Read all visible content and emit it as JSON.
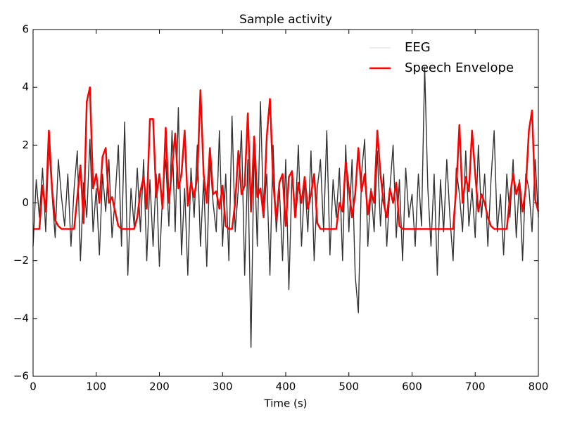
{
  "chart_data": {
    "type": "line",
    "title": "Sample activity",
    "x_label": "Time (s)",
    "x": [
      0,
      5,
      10,
      15,
      20,
      25,
      30,
      35,
      40,
      45,
      50,
      55,
      60,
      65,
      70,
      75,
      80,
      85,
      90,
      95,
      100,
      105,
      110,
      115,
      120,
      125,
      130,
      135,
      140,
      145,
      150,
      155,
      160,
      165,
      170,
      175,
      180,
      185,
      190,
      195,
      200,
      205,
      210,
      215,
      220,
      225,
      230,
      235,
      240,
      245,
      250,
      255,
      260,
      265,
      270,
      275,
      280,
      285,
      290,
      295,
      300,
      305,
      310,
      315,
      320,
      325,
      330,
      335,
      340,
      345,
      350,
      355,
      360,
      365,
      370,
      375,
      380,
      385,
      390,
      395,
      400,
      405,
      410,
      415,
      420,
      425,
      430,
      435,
      440,
      445,
      450,
      455,
      460,
      465,
      470,
      475,
      480,
      485,
      490,
      495,
      500,
      505,
      510,
      515,
      520,
      525,
      530,
      535,
      540,
      545,
      550,
      555,
      560,
      565,
      570,
      575,
      580,
      585,
      590,
      595,
      600,
      605,
      610,
      615,
      620,
      625,
      630,
      635,
      640,
      645,
      650,
      655,
      660,
      665,
      670,
      675,
      680,
      685,
      690,
      695,
      700,
      705,
      710,
      715,
      720,
      725,
      730,
      735,
      740,
      745,
      750,
      755,
      760,
      765,
      770,
      775,
      780,
      785,
      790,
      795,
      800
    ],
    "series": [
      {
        "name": "EEG",
        "color": "#000000",
        "values": [
          -1.5,
          0.8,
          -0.5,
          1.2,
          -1.0,
          2.0,
          0.3,
          -1.2,
          1.5,
          0.2,
          -0.8,
          1.0,
          -1.5,
          0.5,
          1.8,
          -2.0,
          0.7,
          -0.5,
          2.2,
          -1.0,
          0.5,
          -1.8,
          1.0,
          -0.3,
          1.5,
          -1.2,
          0.2,
          2.0,
          -1.5,
          2.8,
          -2.5,
          0.5,
          -0.8,
          1.2,
          -1.0,
          1.5,
          -2.0,
          0.8,
          -1.5,
          1.0,
          -2.2,
          0.3,
          1.5,
          -0.8,
          2.5,
          -1.0,
          3.3,
          -1.8,
          0.5,
          -2.5,
          1.2,
          -0.5,
          2.0,
          -1.5,
          0.8,
          -2.2,
          1.5,
          0.0,
          -1.0,
          2.5,
          -1.5,
          1.0,
          -2.0,
          3.0,
          -1.0,
          0.5,
          2.5,
          -2.5,
          1.5,
          -5.0,
          2.0,
          -1.5,
          3.5,
          -0.5,
          1.0,
          -2.5,
          2.0,
          -1.0,
          0.5,
          -2.0,
          1.5,
          -3.0,
          1.0,
          -0.5,
          2.0,
          -1.5,
          0.8,
          -1.0,
          1.8,
          -2.0,
          0.5,
          1.5,
          -1.0,
          2.5,
          -1.8,
          0.8,
          -0.5,
          1.2,
          -2.0,
          2.0,
          -1.0,
          1.5,
          -2.5,
          -3.8,
          1.0,
          2.2,
          -1.5,
          0.5,
          -1.0,
          1.8,
          -0.8,
          1.0,
          -1.5,
          0.5,
          2.0,
          -1.2,
          0.8,
          -2.0,
          1.2,
          -0.5,
          0.3,
          -1.5,
          1.0,
          -0.8,
          4.7,
          0.5,
          -1.5,
          1.0,
          -2.5,
          0.8,
          -1.0,
          1.5,
          -0.5,
          -2.0,
          1.2,
          0.3,
          -1.0,
          1.8,
          -0.8,
          0.5,
          -1.2,
          2.0,
          -0.5,
          1.0,
          -1.5,
          0.8,
          2.5,
          -1.0,
          0.3,
          -1.8,
          1.0,
          -0.5,
          1.5,
          -1.2,
          0.8,
          -2.0,
          1.0,
          0.5,
          -1.0,
          1.5,
          -0.5
        ]
      },
      {
        "name": "Speech Envelope",
        "color": "#ff0000",
        "values": [
          -0.9,
          -0.9,
          -0.9,
          0.6,
          -0.3,
          2.5,
          0.5,
          -0.6,
          -0.8,
          -0.9,
          -0.9,
          -0.9,
          -0.9,
          -0.9,
          0.2,
          1.3,
          -0.7,
          3.5,
          4.0,
          0.5,
          1.0,
          0.0,
          1.6,
          1.9,
          0.0,
          0.2,
          -0.3,
          -0.8,
          -0.9,
          -0.9,
          -0.9,
          -0.9,
          -0.9,
          -0.5,
          0.4,
          0.9,
          -0.2,
          2.9,
          2.9,
          0.2,
          1.0,
          -0.2,
          2.6,
          0.0,
          1.2,
          2.4,
          0.5,
          1.0,
          2.5,
          -0.1,
          0.7,
          0.2,
          0.9,
          3.9,
          1.0,
          0.0,
          1.9,
          0.3,
          0.4,
          -0.2,
          0.6,
          -0.8,
          -0.9,
          -0.9,
          0.0,
          1.8,
          0.3,
          0.6,
          3.1,
          -0.3,
          2.3,
          0.2,
          0.5,
          -0.5,
          2.3,
          3.6,
          0.8,
          -0.6,
          0.7,
          1.0,
          -0.8,
          0.9,
          1.1,
          -0.5,
          0.7,
          0.0,
          0.9,
          -0.2,
          0.3,
          1.0,
          -0.7,
          -0.9,
          -0.9,
          -0.9,
          -0.9,
          -0.9,
          -0.9,
          0.0,
          -0.3,
          1.4,
          0.5,
          -0.5,
          0.3,
          1.9,
          0.4,
          1.0,
          -0.4,
          0.4,
          0.0,
          2.5,
          1.0,
          0.0,
          -0.5,
          0.5,
          0.0,
          0.7,
          -0.8,
          -0.9,
          -0.9,
          -0.9,
          -0.9,
          -0.9,
          -0.9,
          -0.9,
          -0.9,
          -0.9,
          -0.9,
          -0.9,
          -0.9,
          -0.9,
          -0.9,
          -0.9,
          -0.9,
          -0.9,
          0.5,
          2.7,
          0.0,
          0.9,
          0.4,
          2.5,
          1.0,
          -0.3,
          0.3,
          0.0,
          -0.5,
          -0.8,
          -0.9,
          -0.9,
          -0.9,
          -0.9,
          -0.9,
          0.2,
          1.0,
          0.3,
          0.7,
          -0.3,
          0.5,
          2.5,
          3.2,
          0.1,
          -0.3
        ]
      }
    ],
    "xlim": [
      0,
      800
    ],
    "xticks": [
      0,
      100,
      200,
      300,
      400,
      500,
      600,
      700,
      800
    ],
    "ylim": [
      -6,
      6
    ],
    "yticks": [
      {
        "value": -6,
        "label": "−6"
      },
      {
        "value": -4,
        "label": "−4"
      },
      {
        "value": -2,
        "label": "−2"
      },
      0,
      2,
      4,
      6
    ],
    "legend": "upper right"
  }
}
